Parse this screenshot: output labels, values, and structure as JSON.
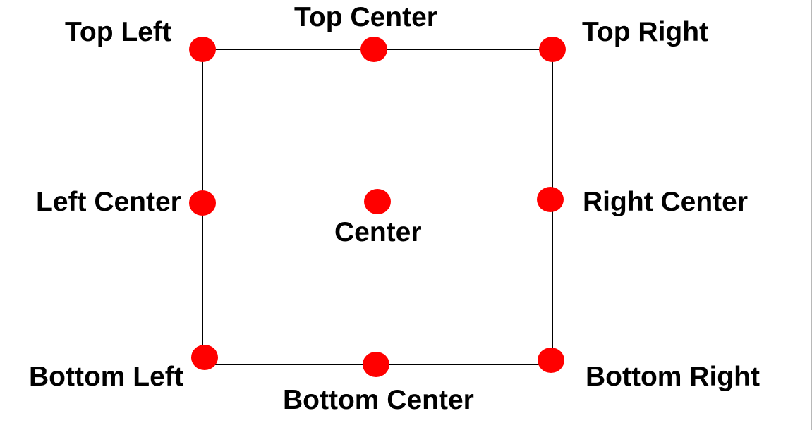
{
  "colors": {
    "background": "#ffffff",
    "frame": "#000000",
    "point": "#ff0000",
    "label": "#000000"
  },
  "points": {
    "top_left": {
      "label": "Top Left"
    },
    "top_center": {
      "label": "Top Center"
    },
    "top_right": {
      "label": "Top Right"
    },
    "left_center": {
      "label": "Left Center"
    },
    "center": {
      "label": "Center"
    },
    "right_center": {
      "label": "Right Center"
    },
    "bottom_left": {
      "label": "Bottom Left"
    },
    "bottom_center": {
      "label": "Bottom Center"
    },
    "bottom_right": {
      "label": "Bottom Right"
    }
  }
}
